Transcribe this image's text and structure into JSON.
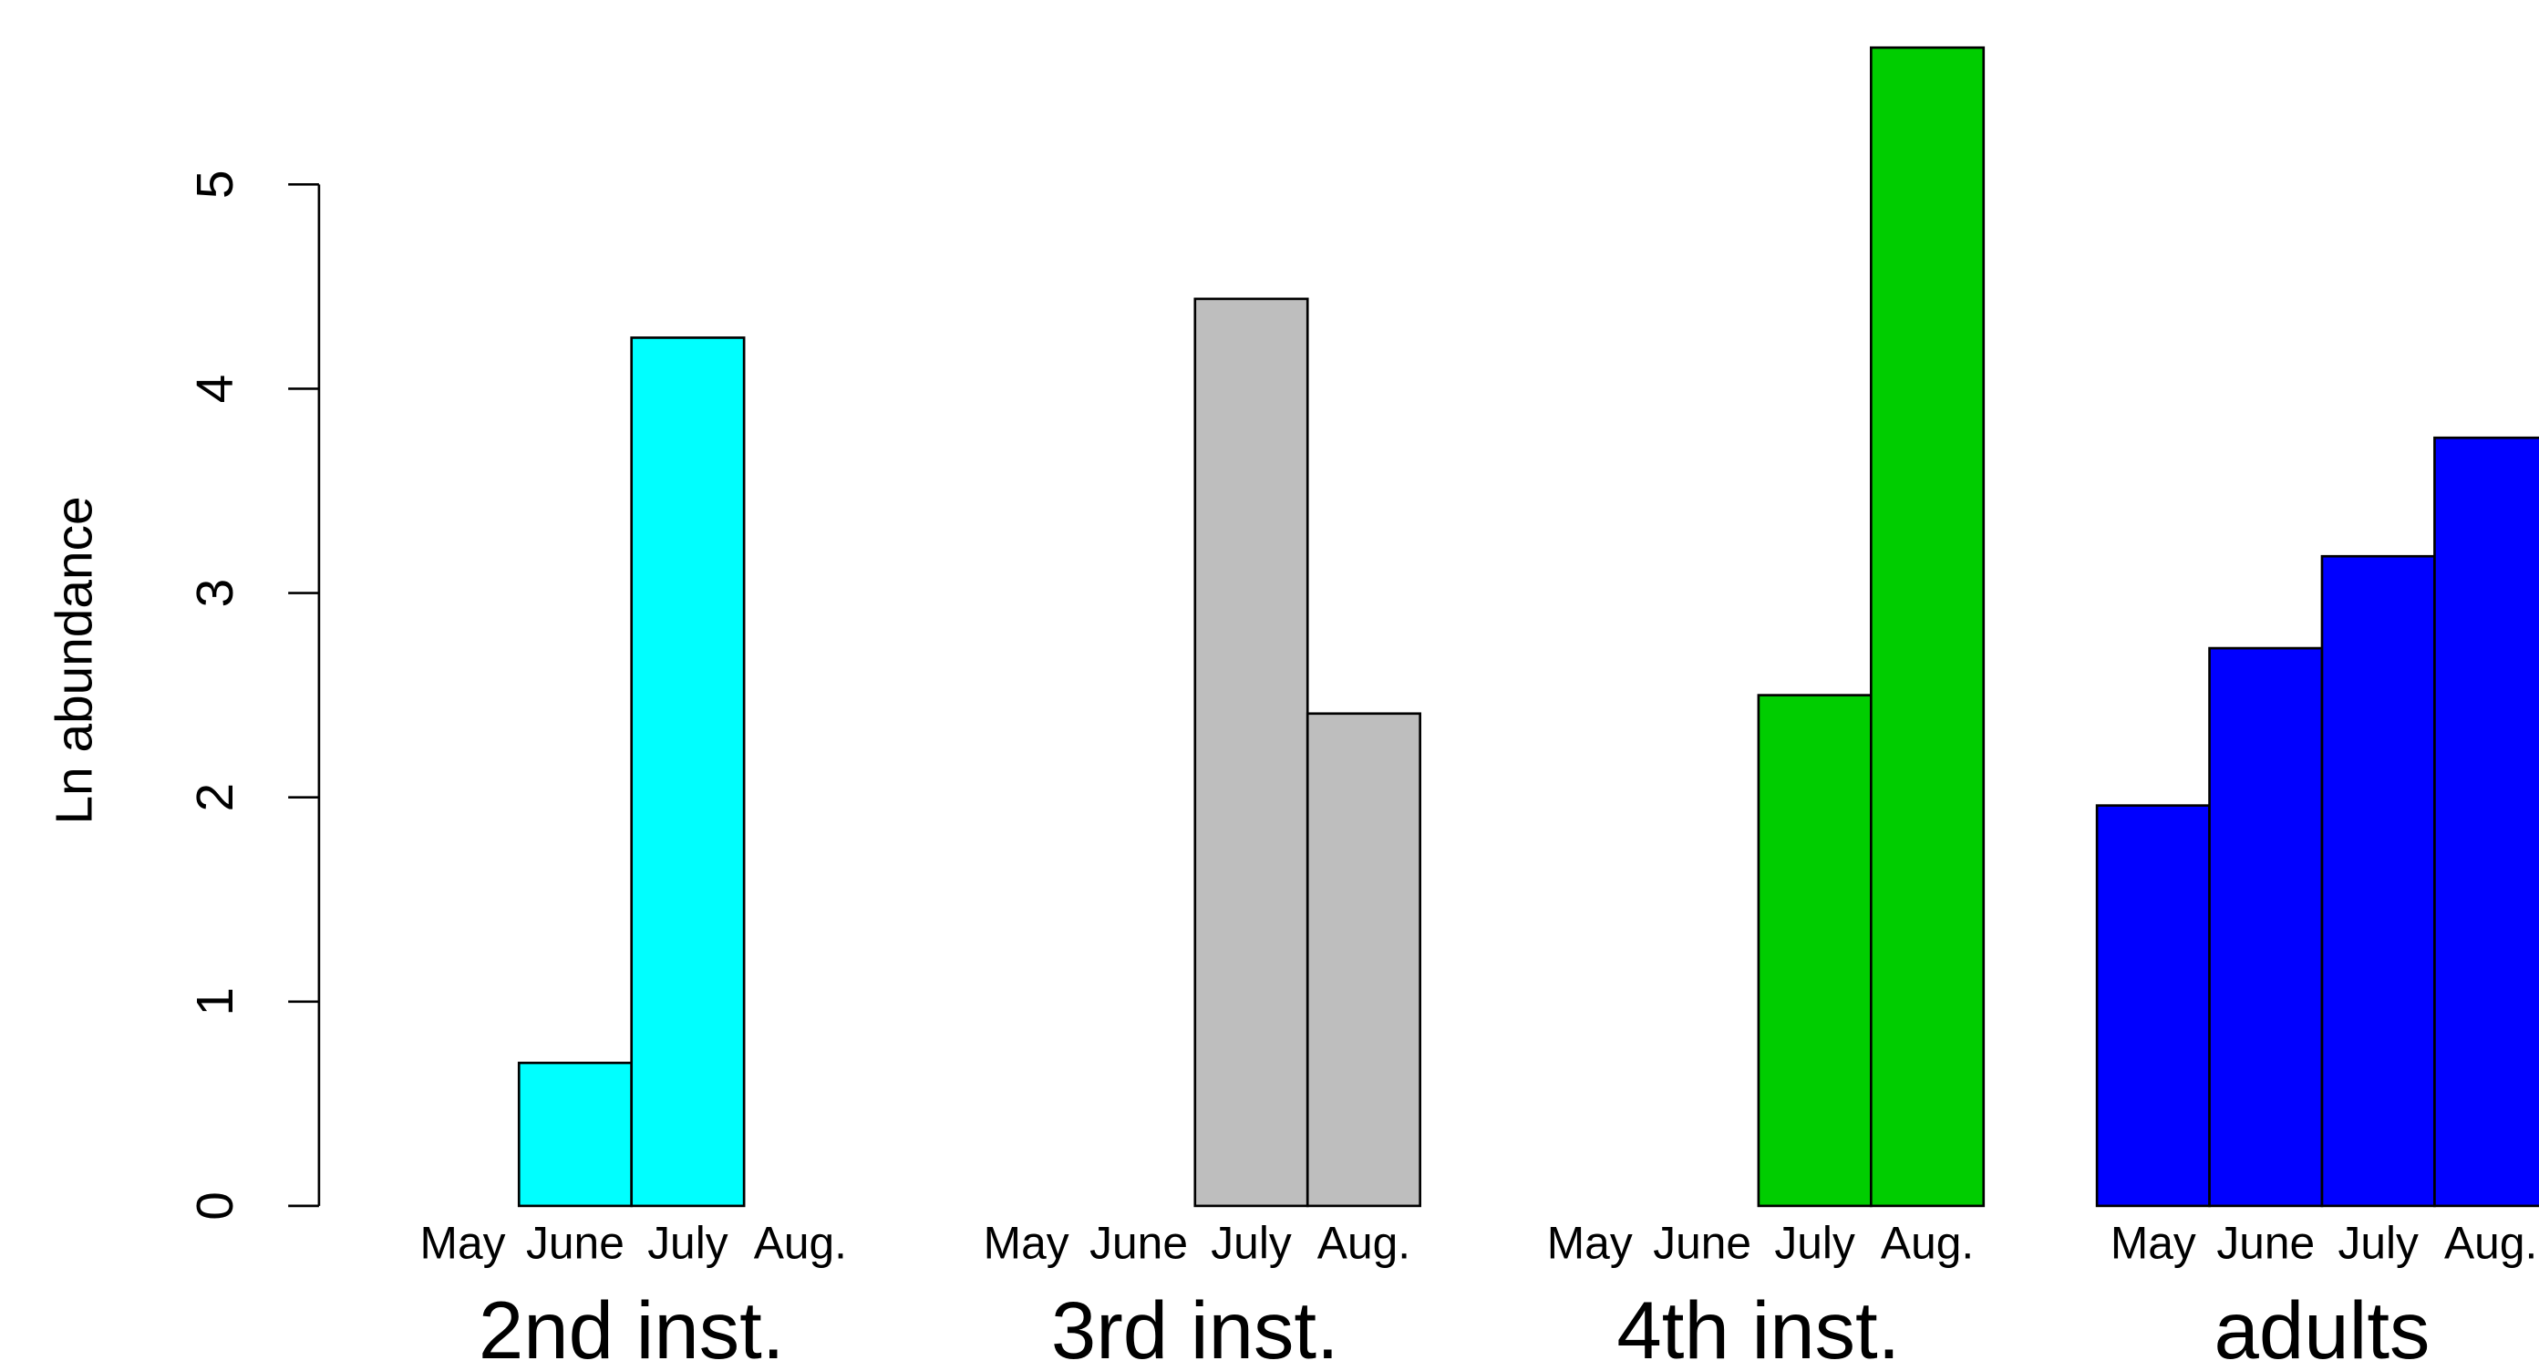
{
  "chart_data": {
    "type": "bar",
    "ylabel": "Ln  abundance",
    "categories": [
      "May",
      "June",
      "July",
      "Aug."
    ],
    "series": [
      {
        "name": "2nd inst.",
        "color": "#00ffff",
        "values": [
          0,
          0.7,
          4.25,
          0
        ]
      },
      {
        "name": "3rd inst.",
        "color": "#bebebe",
        "values": [
          0,
          0,
          4.44,
          2.41
        ]
      },
      {
        "name": "4th inst.",
        "color": "#00cd00",
        "values": [
          0,
          0,
          2.5,
          5.67
        ]
      },
      {
        "name": "adults",
        "color": "#0000ff",
        "values": [
          1.96,
          2.73,
          3.18,
          3.76
        ]
      }
    ],
    "ylim": [
      0,
      5.67
    ],
    "yticks": [
      0,
      1,
      2,
      3,
      4,
      5
    ]
  }
}
